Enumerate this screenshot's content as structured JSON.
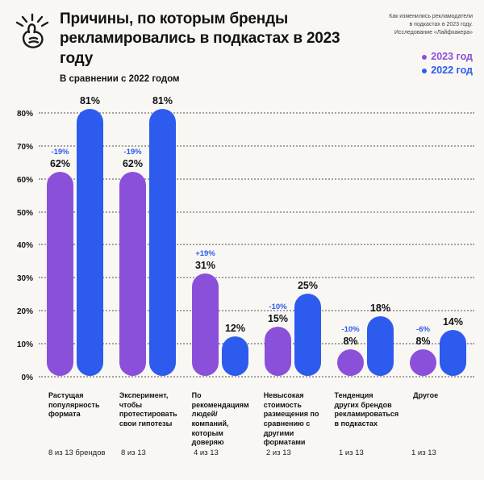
{
  "header": {
    "title": "Причины, по которым бренды\nрекламировались в подкастах в 2023 году",
    "subtitle": "В сравнении с 2022 годом",
    "annotation": "Как изменились рекламодатели\nв подкастах в 2023 году.\nИсследование «Лайфхакера»",
    "icon": "snap-hand-icon"
  },
  "colors": {
    "background": "#f8f7f4",
    "purple_2023": "#8b50d9",
    "blue_2022": "#2d5bee",
    "text": "#121212",
    "grid": "#a6a4a1"
  },
  "chart_data": {
    "type": "bar",
    "title": "Причины, по которым бренды рекламировались в подкастах в 2023 году",
    "subtitle": "В сравнении с 2022 годом",
    "xlabel": "",
    "ylabel": "",
    "ylim": [
      0,
      80
    ],
    "yticks": [
      "0%",
      "10%",
      "20%",
      "30%",
      "40%",
      "50%",
      "60%",
      "70%",
      "80%"
    ],
    "grid": "horizontal-dotted",
    "legend_position": "top-right",
    "legend": [
      {
        "name": "2023 год",
        "color": "#8b50d9"
      },
      {
        "name": "2022 год",
        "color": "#2d5bee"
      }
    ],
    "categories": [
      "Растущая популярность формата",
      "Эксперимент, чтобы протестировать свои гипотезы",
      "По рекомендациям людей/компаний, которым доверяю",
      "Невысокая стоимость размещения по сравнению с другими форматами",
      "Тенденция других брендов рекламироваться в подкастах",
      "Другое"
    ],
    "series": [
      {
        "name": "2023 год",
        "color": "#8b50d9",
        "values": [
          62,
          62,
          31,
          15,
          8,
          8
        ],
        "value_labels": [
          "62%",
          "62%",
          "31%",
          "15%",
          "8%",
          "8%"
        ]
      },
      {
        "name": "2022 год",
        "color": "#2d5bee",
        "values": [
          81,
          81,
          12,
          25,
          18,
          14
        ],
        "value_labels": [
          "81%",
          "81%",
          "12%",
          "25%",
          "18%",
          "14%"
        ]
      }
    ],
    "diff_labels": [
      "-19%",
      "-19%",
      "+19%",
      "-10%",
      "-10%",
      "-6%"
    ],
    "diff_label_color": "#2d5bee",
    "counts": [
      "8 из 13 брендов",
      "8 из 13",
      "4 из 13",
      "2 из 13",
      "1 из 13",
      "1 из 13"
    ]
  }
}
